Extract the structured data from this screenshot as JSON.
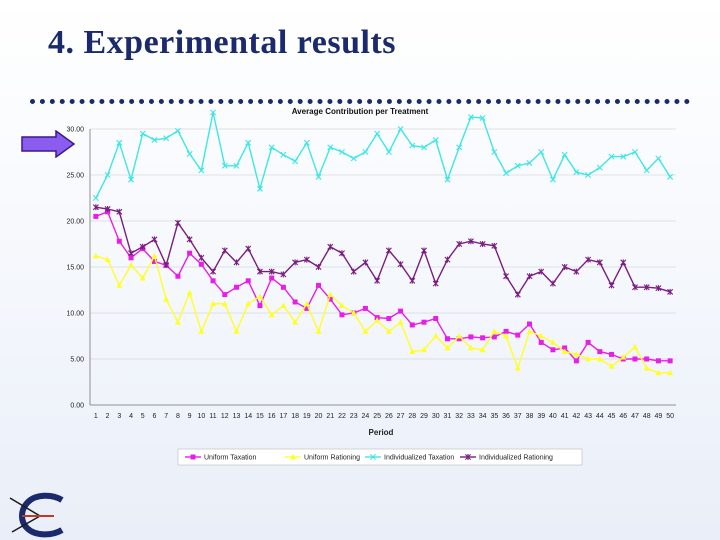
{
  "slide": {
    "title": "4. Experimental results"
  },
  "colors": {
    "title": "#1a2a6c",
    "rule": "#1a2a6c",
    "arrow": "#8a5cf0",
    "uniform_taxation": "#e61ee6",
    "uniform_rationing": "#ffff26",
    "individualized_taxation": "#3fe6e6",
    "individualized_rationing": "#7a1d80"
  },
  "icons": {
    "arrow": "right-arrow-icon",
    "logo": "c-logo-icon"
  },
  "chart_data": {
    "type": "line",
    "title": "Average Contribution per Treatment",
    "xlabel": "Period",
    "ylabel": "",
    "ylim": [
      0,
      30
    ],
    "yticks": [
      "0.00",
      "5.00",
      "10.00",
      "15.00",
      "20.00",
      "25.00",
      "30.00"
    ],
    "x": [
      1,
      2,
      3,
      4,
      5,
      6,
      7,
      8,
      9,
      10,
      11,
      12,
      13,
      14,
      15,
      16,
      17,
      18,
      19,
      20,
      21,
      22,
      23,
      24,
      25,
      26,
      27,
      28,
      29,
      30,
      31,
      32,
      33,
      34,
      35,
      36,
      37,
      38,
      39,
      40,
      41,
      42,
      43,
      44,
      45,
      46,
      47,
      48,
      49,
      50
    ],
    "grid": "horizontal",
    "legend_position": "bottom",
    "series": [
      {
        "name": "Uniform Taxation",
        "color": "#e61ee6",
        "marker": "square",
        "values": [
          20.5,
          21.0,
          17.8,
          16.0,
          17.0,
          15.6,
          15.2,
          14.0,
          16.5,
          15.3,
          13.5,
          12.0,
          12.8,
          13.5,
          10.8,
          13.8,
          12.8,
          11.2,
          10.5,
          13.0,
          11.5,
          9.8,
          10.0,
          10.5,
          9.5,
          9.4,
          10.2,
          8.7,
          9.0,
          9.4,
          7.2,
          7.2,
          7.4,
          7.3,
          7.4,
          8.0,
          7.6,
          8.8,
          6.8,
          6.0,
          6.2,
          4.8,
          6.8,
          5.8,
          5.5,
          5.0,
          5.0,
          5.0,
          4.8,
          4.8
        ]
      },
      {
        "name": "Uniform Rationing",
        "color": "#ffff26",
        "marker": "triangle",
        "values": [
          16.2,
          15.8,
          13.0,
          15.2,
          13.8,
          16.2,
          11.5,
          9.0,
          12.2,
          8.0,
          11.0,
          11.0,
          8.0,
          11.0,
          11.8,
          9.8,
          10.8,
          9.0,
          11.0,
          8.0,
          12.0,
          10.8,
          10.0,
          8.0,
          9.2,
          8.0,
          9.0,
          5.8,
          6.0,
          7.5,
          6.2,
          7.5,
          6.2,
          6.0,
          8.0,
          7.5,
          4.0,
          8.0,
          7.5,
          6.8,
          5.8,
          5.5,
          5.0,
          5.0,
          4.2,
          5.2,
          6.3,
          4.0,
          3.5,
          3.5
        ]
      },
      {
        "name": "Individualized Taxation",
        "color": "#3fe6e6",
        "marker": "x",
        "values": [
          22.5,
          25.0,
          28.5,
          24.5,
          29.5,
          28.8,
          29.0,
          29.8,
          27.3,
          25.5,
          31.8,
          26.0,
          26.0,
          28.5,
          23.5,
          28.0,
          27.2,
          26.5,
          28.5,
          24.8,
          28.0,
          27.5,
          26.8,
          27.5,
          29.5,
          27.5,
          30.0,
          28.2,
          28.0,
          28.8,
          24.5,
          28.0,
          31.3,
          31.2,
          27.5,
          25.2,
          26.0,
          26.3,
          27.5,
          24.5,
          27.2,
          25.3,
          25.0,
          25.8,
          27.0,
          27.0,
          27.5,
          25.5,
          26.8,
          24.8
        ]
      },
      {
        "name": "Individualized Rationing",
        "color": "#7a1d80",
        "marker": "asterisk",
        "values": [
          21.5,
          21.3,
          21.0,
          16.5,
          17.2,
          18.0,
          15.2,
          19.8,
          18.0,
          16.0,
          14.5,
          16.8,
          15.5,
          17.0,
          14.5,
          14.5,
          14.2,
          15.5,
          15.8,
          15.0,
          17.2,
          16.5,
          14.5,
          15.5,
          13.5,
          16.8,
          15.3,
          13.5,
          16.8,
          13.2,
          15.8,
          17.5,
          17.8,
          17.5,
          17.3,
          14.0,
          12.0,
          14.0,
          14.5,
          13.2,
          15.0,
          14.5,
          15.8,
          15.5,
          13.0,
          15.5,
          12.8,
          12.8,
          12.7,
          12.3
        ]
      }
    ]
  }
}
